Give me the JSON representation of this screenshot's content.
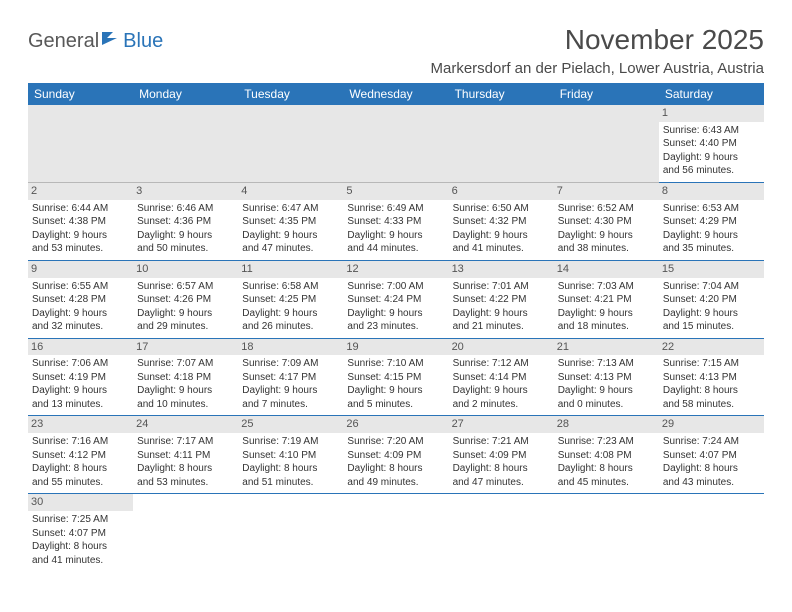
{
  "logo": {
    "part1": "General",
    "part2": "Blue",
    "color1": "#585858",
    "color2": "#2a74b8"
  },
  "title": "November 2025",
  "location": "Markersdorf an der Pielach, Lower Austria, Austria",
  "header_bg": "#2a74b8",
  "header_fg": "#ffffff",
  "daynum_bg": "#e7e7e7",
  "border_color": "#2a74b8",
  "weekdays": [
    "Sunday",
    "Monday",
    "Tuesday",
    "Wednesday",
    "Thursday",
    "Friday",
    "Saturday"
  ],
  "weeks": [
    [
      null,
      null,
      null,
      null,
      null,
      null,
      {
        "n": "1",
        "sr": "Sunrise: 6:43 AM",
        "ss": "Sunset: 4:40 PM",
        "dl1": "Daylight: 9 hours",
        "dl2": "and 56 minutes."
      }
    ],
    [
      {
        "n": "2",
        "sr": "Sunrise: 6:44 AM",
        "ss": "Sunset: 4:38 PM",
        "dl1": "Daylight: 9 hours",
        "dl2": "and 53 minutes."
      },
      {
        "n": "3",
        "sr": "Sunrise: 6:46 AM",
        "ss": "Sunset: 4:36 PM",
        "dl1": "Daylight: 9 hours",
        "dl2": "and 50 minutes."
      },
      {
        "n": "4",
        "sr": "Sunrise: 6:47 AM",
        "ss": "Sunset: 4:35 PM",
        "dl1": "Daylight: 9 hours",
        "dl2": "and 47 minutes."
      },
      {
        "n": "5",
        "sr": "Sunrise: 6:49 AM",
        "ss": "Sunset: 4:33 PM",
        "dl1": "Daylight: 9 hours",
        "dl2": "and 44 minutes."
      },
      {
        "n": "6",
        "sr": "Sunrise: 6:50 AM",
        "ss": "Sunset: 4:32 PM",
        "dl1": "Daylight: 9 hours",
        "dl2": "and 41 minutes."
      },
      {
        "n": "7",
        "sr": "Sunrise: 6:52 AM",
        "ss": "Sunset: 4:30 PM",
        "dl1": "Daylight: 9 hours",
        "dl2": "and 38 minutes."
      },
      {
        "n": "8",
        "sr": "Sunrise: 6:53 AM",
        "ss": "Sunset: 4:29 PM",
        "dl1": "Daylight: 9 hours",
        "dl2": "and 35 minutes."
      }
    ],
    [
      {
        "n": "9",
        "sr": "Sunrise: 6:55 AM",
        "ss": "Sunset: 4:28 PM",
        "dl1": "Daylight: 9 hours",
        "dl2": "and 32 minutes."
      },
      {
        "n": "10",
        "sr": "Sunrise: 6:57 AM",
        "ss": "Sunset: 4:26 PM",
        "dl1": "Daylight: 9 hours",
        "dl2": "and 29 minutes."
      },
      {
        "n": "11",
        "sr": "Sunrise: 6:58 AM",
        "ss": "Sunset: 4:25 PM",
        "dl1": "Daylight: 9 hours",
        "dl2": "and 26 minutes."
      },
      {
        "n": "12",
        "sr": "Sunrise: 7:00 AM",
        "ss": "Sunset: 4:24 PM",
        "dl1": "Daylight: 9 hours",
        "dl2": "and 23 minutes."
      },
      {
        "n": "13",
        "sr": "Sunrise: 7:01 AM",
        "ss": "Sunset: 4:22 PM",
        "dl1": "Daylight: 9 hours",
        "dl2": "and 21 minutes."
      },
      {
        "n": "14",
        "sr": "Sunrise: 7:03 AM",
        "ss": "Sunset: 4:21 PM",
        "dl1": "Daylight: 9 hours",
        "dl2": "and 18 minutes."
      },
      {
        "n": "15",
        "sr": "Sunrise: 7:04 AM",
        "ss": "Sunset: 4:20 PM",
        "dl1": "Daylight: 9 hours",
        "dl2": "and 15 minutes."
      }
    ],
    [
      {
        "n": "16",
        "sr": "Sunrise: 7:06 AM",
        "ss": "Sunset: 4:19 PM",
        "dl1": "Daylight: 9 hours",
        "dl2": "and 13 minutes."
      },
      {
        "n": "17",
        "sr": "Sunrise: 7:07 AM",
        "ss": "Sunset: 4:18 PM",
        "dl1": "Daylight: 9 hours",
        "dl2": "and 10 minutes."
      },
      {
        "n": "18",
        "sr": "Sunrise: 7:09 AM",
        "ss": "Sunset: 4:17 PM",
        "dl1": "Daylight: 9 hours",
        "dl2": "and 7 minutes."
      },
      {
        "n": "19",
        "sr": "Sunrise: 7:10 AM",
        "ss": "Sunset: 4:15 PM",
        "dl1": "Daylight: 9 hours",
        "dl2": "and 5 minutes."
      },
      {
        "n": "20",
        "sr": "Sunrise: 7:12 AM",
        "ss": "Sunset: 4:14 PM",
        "dl1": "Daylight: 9 hours",
        "dl2": "and 2 minutes."
      },
      {
        "n": "21",
        "sr": "Sunrise: 7:13 AM",
        "ss": "Sunset: 4:13 PM",
        "dl1": "Daylight: 9 hours",
        "dl2": "and 0 minutes."
      },
      {
        "n": "22",
        "sr": "Sunrise: 7:15 AM",
        "ss": "Sunset: 4:13 PM",
        "dl1": "Daylight: 8 hours",
        "dl2": "and 58 minutes."
      }
    ],
    [
      {
        "n": "23",
        "sr": "Sunrise: 7:16 AM",
        "ss": "Sunset: 4:12 PM",
        "dl1": "Daylight: 8 hours",
        "dl2": "and 55 minutes."
      },
      {
        "n": "24",
        "sr": "Sunrise: 7:17 AM",
        "ss": "Sunset: 4:11 PM",
        "dl1": "Daylight: 8 hours",
        "dl2": "and 53 minutes."
      },
      {
        "n": "25",
        "sr": "Sunrise: 7:19 AM",
        "ss": "Sunset: 4:10 PM",
        "dl1": "Daylight: 8 hours",
        "dl2": "and 51 minutes."
      },
      {
        "n": "26",
        "sr": "Sunrise: 7:20 AM",
        "ss": "Sunset: 4:09 PM",
        "dl1": "Daylight: 8 hours",
        "dl2": "and 49 minutes."
      },
      {
        "n": "27",
        "sr": "Sunrise: 7:21 AM",
        "ss": "Sunset: 4:09 PM",
        "dl1": "Daylight: 8 hours",
        "dl2": "and 47 minutes."
      },
      {
        "n": "28",
        "sr": "Sunrise: 7:23 AM",
        "ss": "Sunset: 4:08 PM",
        "dl1": "Daylight: 8 hours",
        "dl2": "and 45 minutes."
      },
      {
        "n": "29",
        "sr": "Sunrise: 7:24 AM",
        "ss": "Sunset: 4:07 PM",
        "dl1": "Daylight: 8 hours",
        "dl2": "and 43 minutes."
      }
    ],
    [
      {
        "n": "30",
        "sr": "Sunrise: 7:25 AM",
        "ss": "Sunset: 4:07 PM",
        "dl1": "Daylight: 8 hours",
        "dl2": "and 41 minutes."
      },
      null,
      null,
      null,
      null,
      null,
      null
    ]
  ]
}
